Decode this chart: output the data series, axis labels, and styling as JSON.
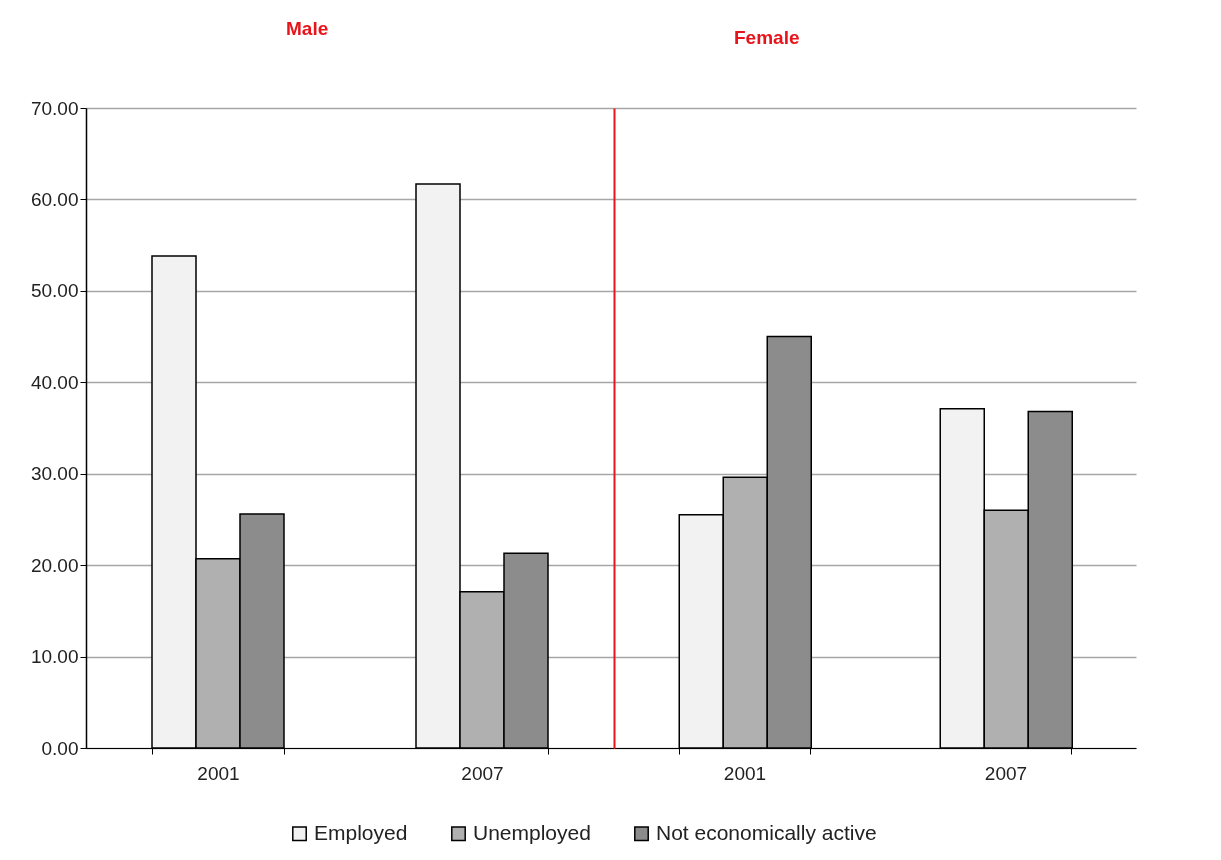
{
  "chart_data": [
    {
      "type": "bar",
      "title": "Male",
      "categories": [
        "2001",
        "2007"
      ],
      "series": [
        {
          "name": "Employed",
          "color": "#f2f2f2",
          "values": [
            53.8,
            61.7
          ]
        },
        {
          "name": "Unemployed",
          "color": "#b0b0b0",
          "values": [
            20.7,
            17.1
          ]
        },
        {
          "name": "Not economically active",
          "color": "#8c8c8c",
          "values": [
            25.6,
            21.3
          ]
        }
      ],
      "ylim": [
        0,
        70
      ],
      "yticks": [
        {
          "value": 0,
          "label": "0.00"
        },
        {
          "value": 10,
          "label": "10.00"
        },
        {
          "value": 20,
          "label": "20.00"
        },
        {
          "value": 30,
          "label": "30.00"
        },
        {
          "value": 40,
          "label": "40.00"
        },
        {
          "value": 50,
          "label": "50.00"
        },
        {
          "value": 60,
          "label": "60.00"
        },
        {
          "value": 70,
          "label": "70.00"
        }
      ],
      "grid": "y",
      "legend": "bottom"
    },
    {
      "type": "bar",
      "title": "Female",
      "categories": [
        "2001",
        "2007"
      ],
      "series": [
        {
          "name": "Employed",
          "color": "#f2f2f2",
          "values": [
            25.5,
            37.1
          ]
        },
        {
          "name": "Unemployed",
          "color": "#b0b0b0",
          "values": [
            29.6,
            26.0
          ]
        },
        {
          "name": "Not economically active",
          "color": "#8c8c8c",
          "values": [
            45.0,
            36.8
          ]
        }
      ],
      "ylim": [
        0,
        70
      ],
      "yticks": [
        0,
        10,
        20,
        30,
        40,
        50,
        60,
        70
      ],
      "grid": "y",
      "tick_labels": "x",
      "legend": "bottom"
    }
  ]
}
